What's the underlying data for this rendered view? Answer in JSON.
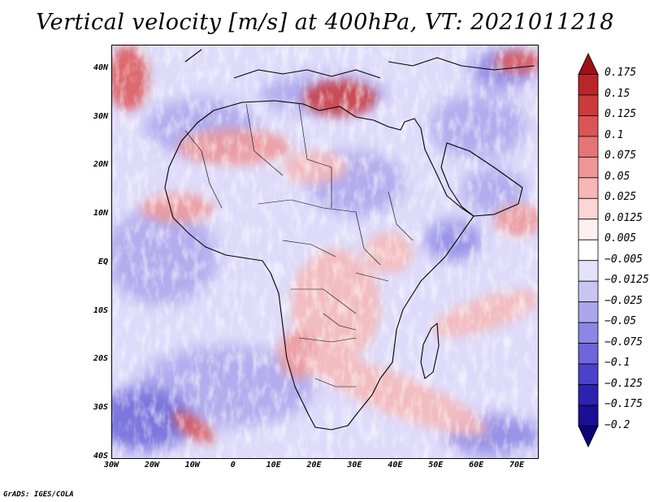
{
  "title": "Vertical velocity [m/s] at 400hPa, VT: 2021011218",
  "footer": "GrADS: IGES/COLA",
  "lat_ticks": [
    {
      "label": "40N",
      "lat": 40
    },
    {
      "label": "30N",
      "lat": 30
    },
    {
      "label": "20N",
      "lat": 20
    },
    {
      "label": "10N",
      "lat": 10
    },
    {
      "label": "EQ",
      "lat": 0
    },
    {
      "label": "10S",
      "lat": -10
    },
    {
      "label": "20S",
      "lat": -20
    },
    {
      "label": "30S",
      "lat": -30
    },
    {
      "label": "40S",
      "lat": -40
    }
  ],
  "lon_ticks": [
    {
      "label": "30W",
      "lon": -30
    },
    {
      "label": "20W",
      "lon": -20
    },
    {
      "label": "10W",
      "lon": -10
    },
    {
      "label": "0",
      "lon": 0
    },
    {
      "label": "10E",
      "lon": 10
    },
    {
      "label": "20E",
      "lon": 20
    },
    {
      "label": "30E",
      "lon": 30
    },
    {
      "label": "40E",
      "lon": 40
    },
    {
      "label": "50E",
      "lon": 50
    },
    {
      "label": "60E",
      "lon": 60
    },
    {
      "label": "70E",
      "lon": 70
    }
  ],
  "domain": {
    "lon_min": -30,
    "lon_max": 75,
    "lat_min": -40,
    "lat_max": 45
  },
  "colorbar": {
    "levels": [
      "0.175",
      "0.15",
      "0.125",
      "0.1",
      "0.075",
      "0.05",
      "0.025",
      "0.0125",
      "0.005",
      "−0.005",
      "−0.0125",
      "−0.025",
      "−0.05",
      "−0.075",
      "−0.1",
      "−0.125",
      "−0.175",
      "−0.2"
    ],
    "colors": [
      "#9e1015",
      "#b8262a",
      "#cd3a3c",
      "#dc5556",
      "#e67474",
      "#ef9696",
      "#f6b7b6",
      "#fbd6d5",
      "#fff0f0",
      "#ffffff",
      "#e4e2fb",
      "#cac6f4",
      "#aca6ec",
      "#8d86e3",
      "#6d65d9",
      "#4a42c9",
      "#2c22b0",
      "#1a0f96",
      "#0e0478"
    ]
  }
}
